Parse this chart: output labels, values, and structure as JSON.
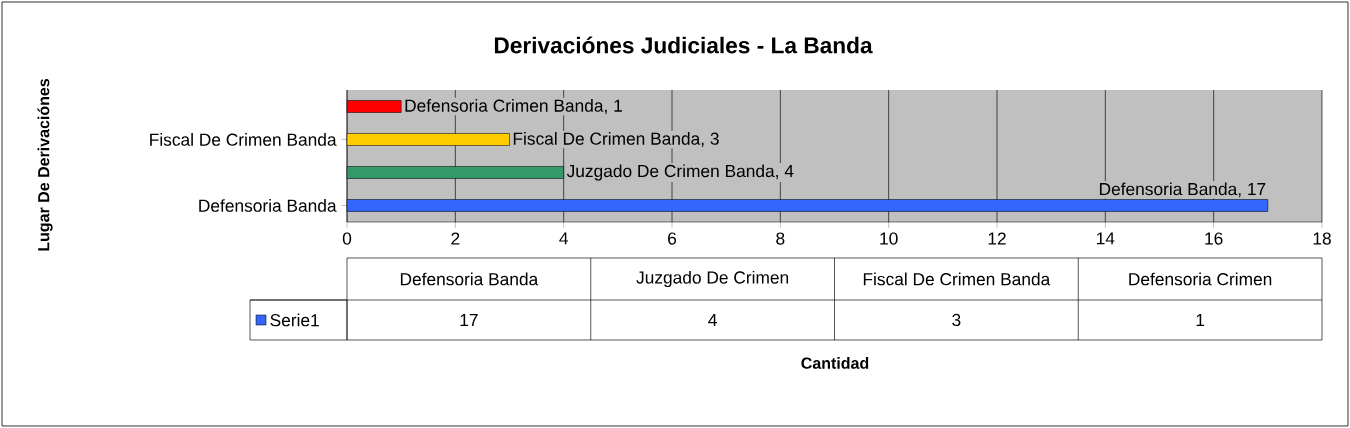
{
  "chart_data": {
    "type": "bar",
    "orientation": "horizontal",
    "title": "Derivaciónes Judiciales - La Banda",
    "categories": [
      null,
      "Fiscal De Crimen Banda",
      null,
      "Defensoria Banda"
    ],
    "series": [
      {
        "name": "Serie1",
        "color": "#3366ff",
        "values": [
          1,
          3,
          4,
          17
        ],
        "colors": [
          "#ff0000",
          "#ffcc00",
          "#339966",
          "#3366ff"
        ],
        "value_labels": [
          "Defensoria Crimen Banda, 1",
          "Fiscal De Crimen Banda, 3",
          "Juzgado De Crimen Banda, 4",
          "Defensoria Banda, 17"
        ]
      }
    ],
    "xlim": [
      0,
      18
    ],
    "xticks": [
      0,
      2,
      4,
      6,
      8,
      10,
      12,
      14,
      16,
      18
    ],
    "grid": "x",
    "legend": "bottom",
    "annotations": [
      "Defensoria Banda",
      "Juzgado De Crimen",
      "Fiscal De Crimen Banda",
      "Defensoria Crimen",
      "17",
      "4",
      "3",
      "1",
      "Cantidad",
      "Lugar De Derivaciónes"
    ]
  }
}
